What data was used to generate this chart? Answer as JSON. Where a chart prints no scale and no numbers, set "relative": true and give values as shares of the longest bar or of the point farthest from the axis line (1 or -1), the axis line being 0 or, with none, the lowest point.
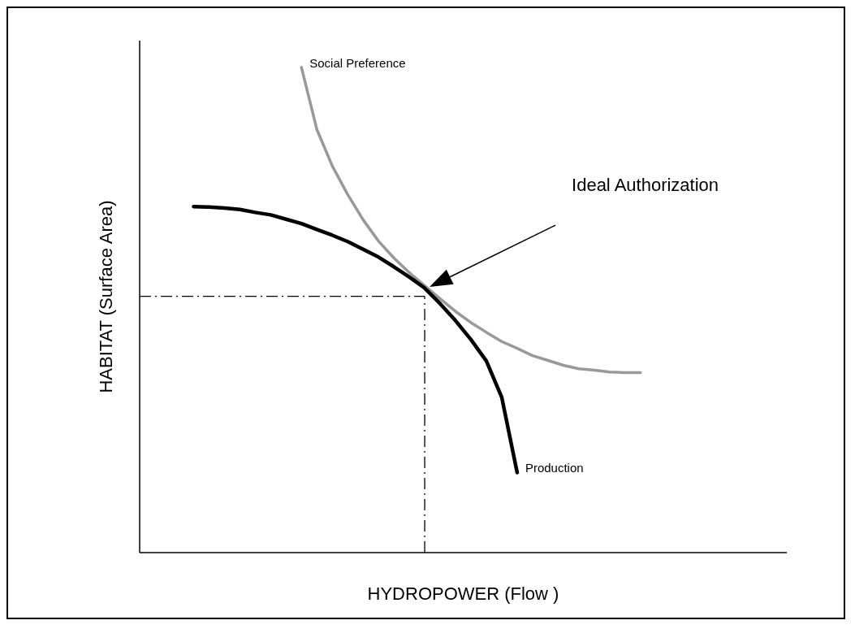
{
  "chart_data": {
    "type": "line",
    "relative": true,
    "xlabel": "HYDROPOWER  (Flow )",
    "ylabel": "HABITAT (Surface Area)",
    "grid": false,
    "legend": false,
    "marker": "none",
    "line_style": "solid",
    "categories": [
      null,
      null,
      null,
      null,
      null,
      null,
      null,
      null,
      null,
      null,
      null,
      null,
      null,
      null,
      null,
      null,
      null,
      null,
      null,
      null,
      null,
      null,
      null,
      null,
      null,
      null,
      null,
      null,
      null,
      null,
      null,
      null,
      null,
      null,
      null,
      null,
      null,
      null,
      null,
      null,
      null,
      null
    ],
    "annotations": [
      "Ideal Authorization"
    ],
    "ref_lines": [
      {
        "axis": "y",
        "value": 0.528,
        "color": "#000000",
        "line_style": "dashed"
      },
      {
        "axis": "x",
        "color": "#000000",
        "line_style": "dashed"
      }
    ],
    "series": [
      {
        "name": "Social Preference",
        "color": "#999999",
        "values": [
          null,
          null,
          null,
          null,
          null,
          null,
          null,
          null,
          null,
          null,
          1.0,
          0.872,
          0.797,
          0.738,
          0.686,
          0.642,
          0.607,
          0.577,
          0.55,
          0.523,
          0.497,
          0.474,
          0.454,
          0.435,
          0.421,
          0.406,
          0.396,
          0.386,
          0.379,
          0.376,
          0.372,
          0.371,
          0.371,
          null,
          null,
          null,
          null,
          null,
          null,
          null,
          null,
          null
        ]
      },
      {
        "name": "Production",
        "color": "#000000",
        "values": [
          null,
          null,
          null,
          0.713,
          0.712,
          0.71,
          0.707,
          0.701,
          0.696,
          0.687,
          0.678,
          0.666,
          0.654,
          0.641,
          0.625,
          0.609,
          0.589,
          0.568,
          0.545,
          0.513,
          0.478,
          0.439,
          0.395,
          0.32,
          0.165,
          null,
          null,
          null,
          null,
          null,
          null,
          null,
          null,
          null,
          null,
          null,
          null,
          null,
          null,
          null,
          null,
          null
        ]
      }
    ]
  }
}
